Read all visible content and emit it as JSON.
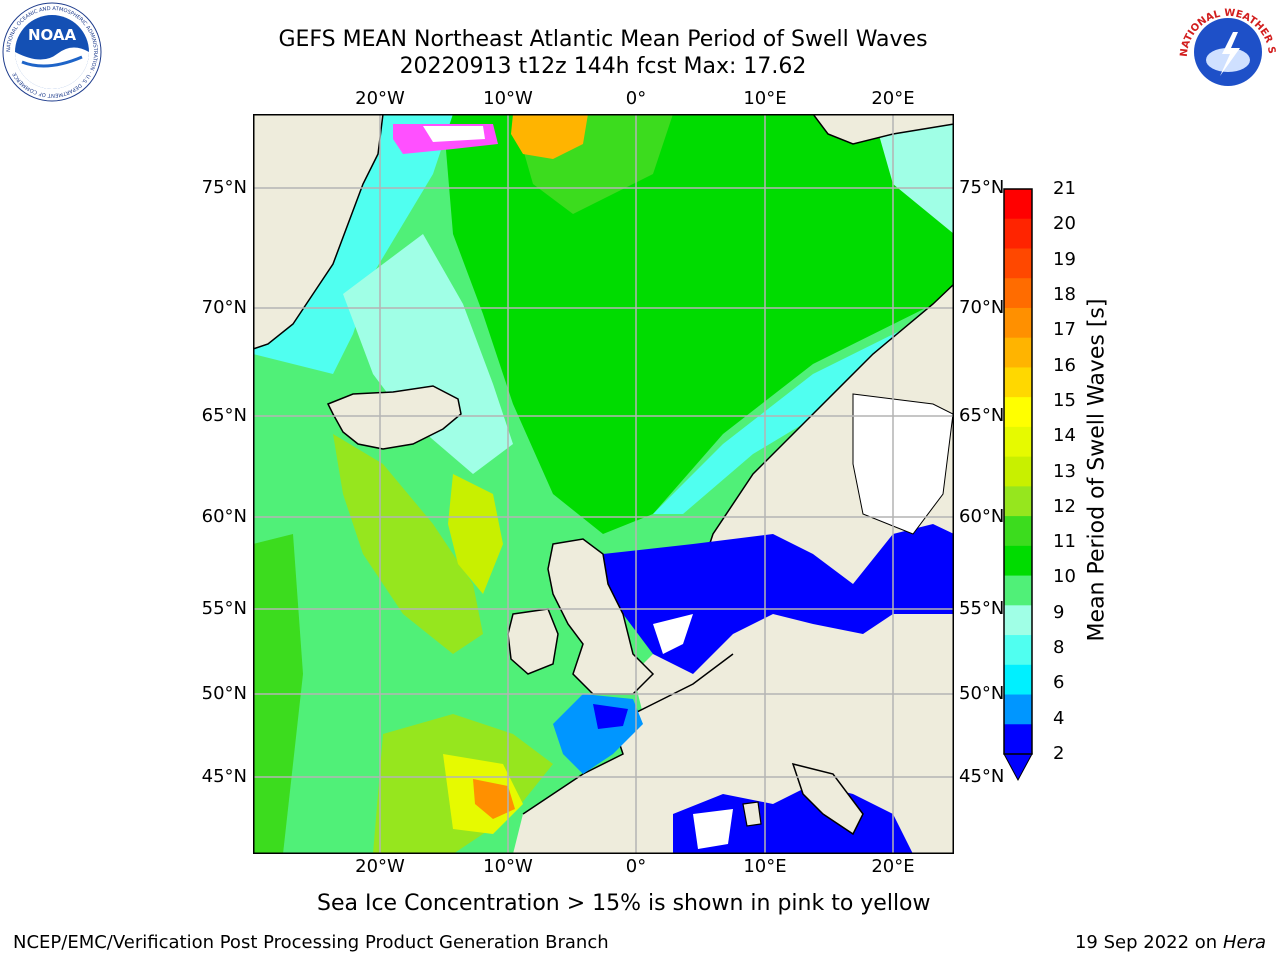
{
  "title": {
    "line1": "GEFS MEAN Northeast Atlantic Mean Period of Swell Waves",
    "line2": "20220913 t12z 144h fcst   Max: 17.62"
  },
  "axes": {
    "lon_ticks": [
      "20°W",
      "10°W",
      "0°",
      "10°E",
      "20°E"
    ],
    "lat_ticks": [
      "75°N",
      "70°N",
      "65°N",
      "60°N",
      "55°N",
      "50°N",
      "45°N"
    ]
  },
  "colorbar": {
    "label": "Mean Period of Swell Waves [s]",
    "ticks": [
      "21",
      "20",
      "19",
      "18",
      "17",
      "16",
      "15",
      "14",
      "13",
      "12",
      "11",
      "10",
      "9",
      "8",
      "6",
      "4",
      "2"
    ],
    "colors": [
      "#ff0000",
      "#ff2400",
      "#ff4800",
      "#ff6c00",
      "#ff9000",
      "#ffb400",
      "#ffd800",
      "#ffff00",
      "#e6fa00",
      "#c8f000",
      "#96e61e",
      "#3cdc1e",
      "#00dc00",
      "#50f078",
      "#a0ffe6",
      "#50fff0",
      "#00f0ff",
      "#0096ff",
      "#0000ff"
    ]
  },
  "caption": "Sea Ice Concentration > 15% is shown in pink to yellow",
  "footer": {
    "credit": "NCEP/EMC/Verification Post Processing Product Generation Branch",
    "date": "19 Sep 2022 on",
    "machine": "Hera"
  },
  "logos": {
    "noaa": "NOAA",
    "noaa_ring": "NATIONAL OCEANIC AND ATMOSPHERIC ADMINISTRATION · U.S. DEPARTMENT OF COMMERCE",
    "nws_ring": "NATIONAL WEATHER SERVICE"
  },
  "colors": {
    "land": "#eeecdc",
    "grid": "#b4b4b4",
    "coast": "#000000"
  }
}
